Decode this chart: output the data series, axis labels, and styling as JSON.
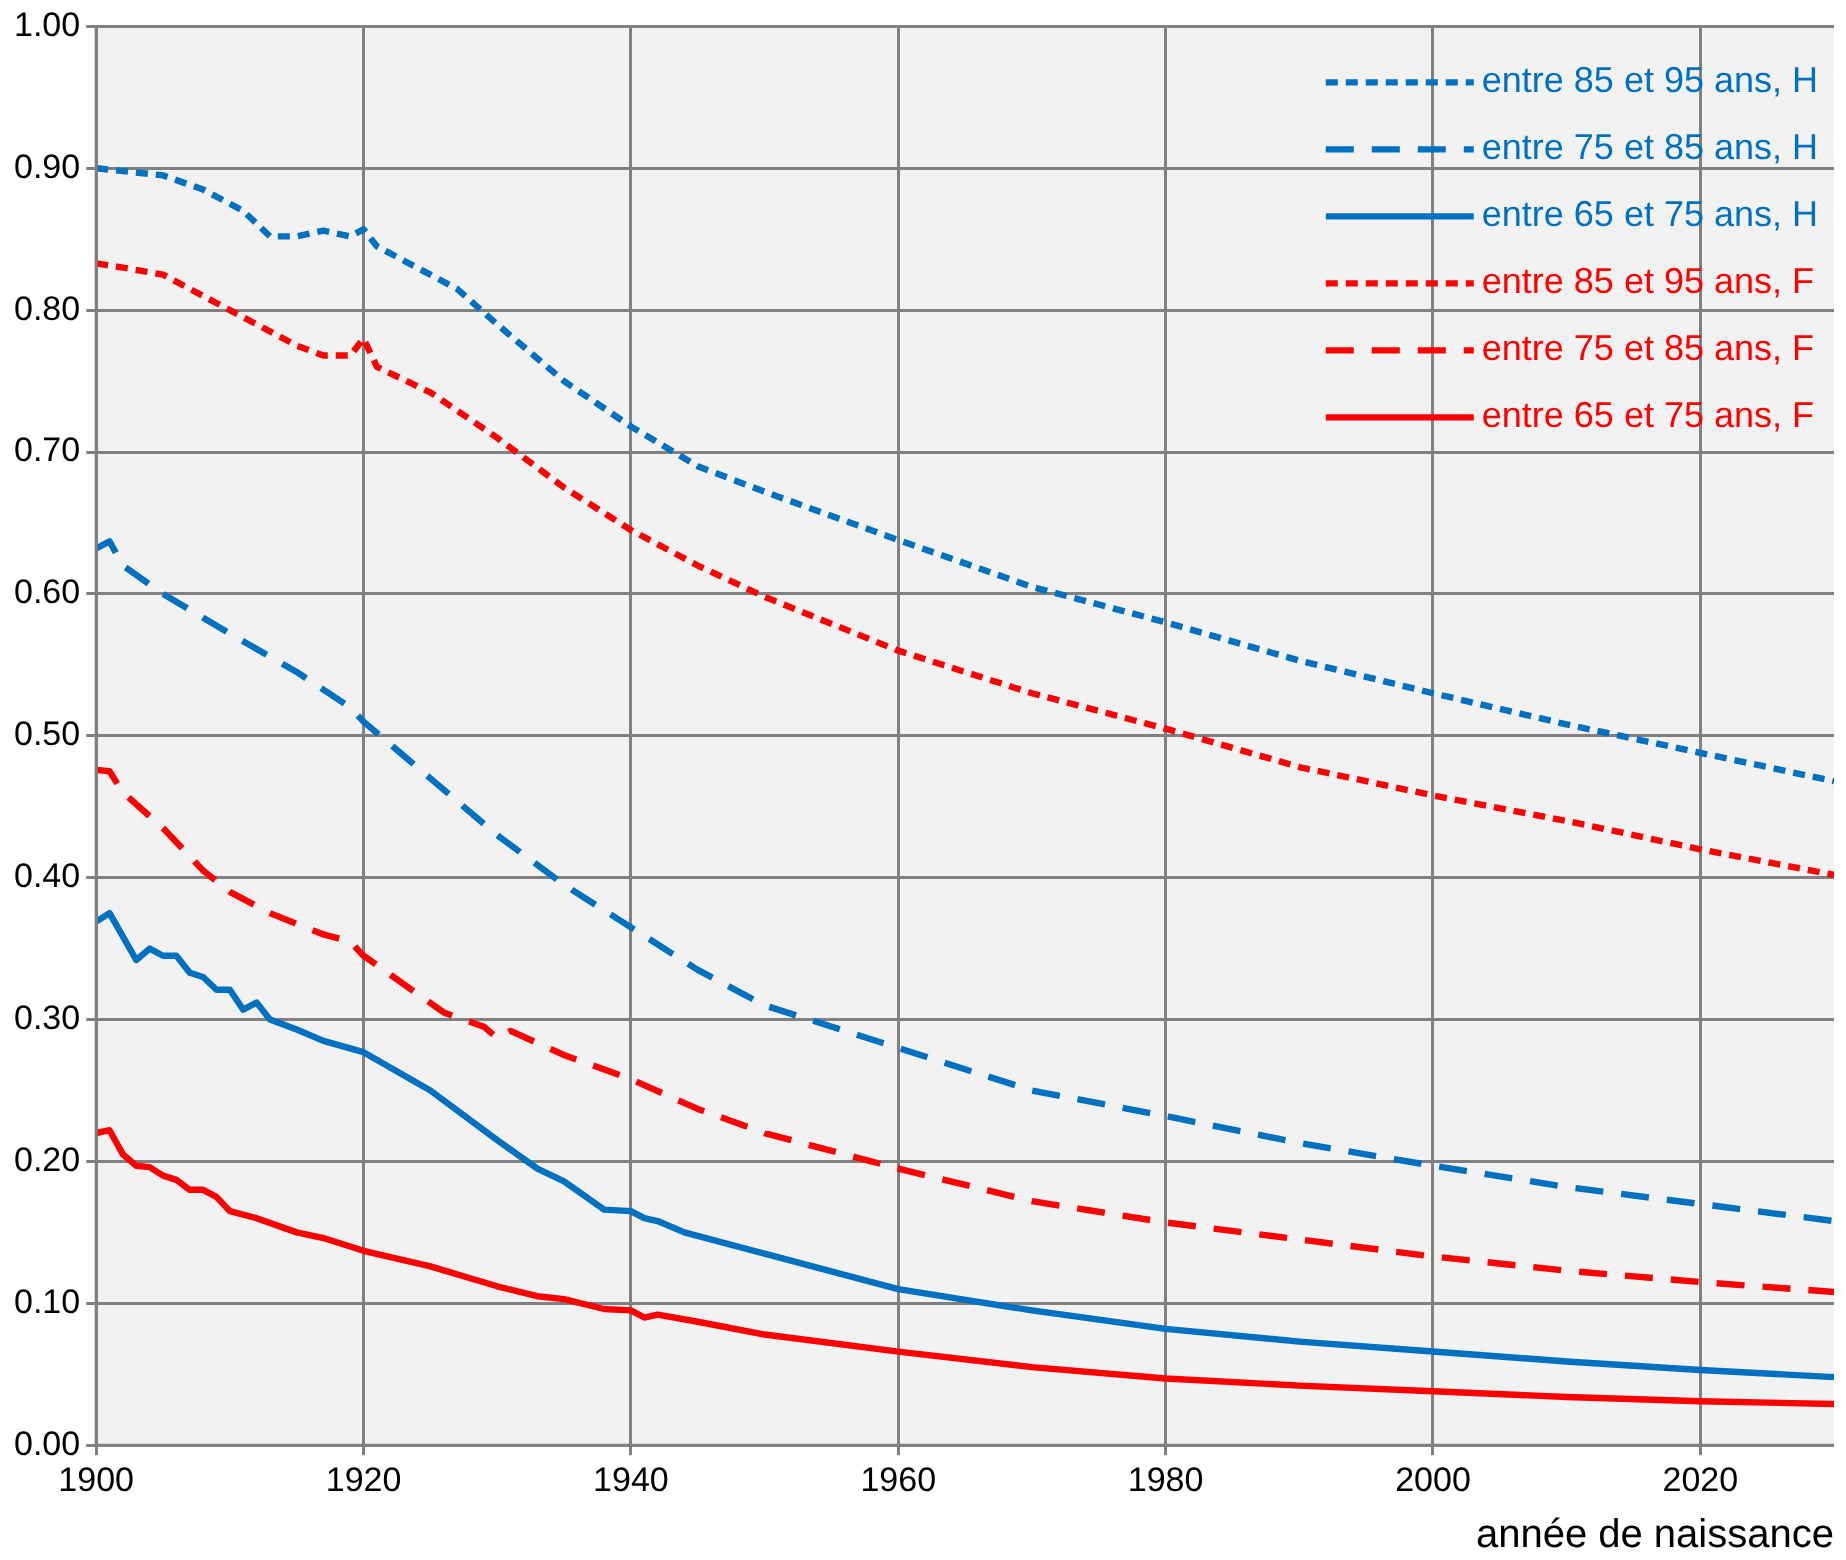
{
  "chart_data": {
    "type": "line",
    "xlabel": "année de naissance",
    "xlim": [
      1900,
      2030
    ],
    "xticks": [
      1900,
      1920,
      1940,
      1960,
      1980,
      2000,
      2020
    ],
    "ylim": [
      0,
      1
    ],
    "yticks": [
      {
        "value": 0,
        "label": "0.00"
      },
      {
        "value": 0.1,
        "label": "0.10"
      },
      {
        "value": 0.2,
        "label": "0.20"
      },
      {
        "value": 0.3,
        "label": "0.30"
      },
      {
        "value": 0.4,
        "label": "0.40"
      },
      {
        "value": 0.5,
        "label": "0.50"
      },
      {
        "value": 0.6,
        "label": "0.60"
      },
      {
        "value": 0.7,
        "label": "0.70"
      },
      {
        "value": 0.8,
        "label": "0.80"
      },
      {
        "value": 0.9,
        "label": "0.90"
      },
      {
        "value": 1,
        "label": "1.00"
      }
    ],
    "grid": true,
    "legend": "top right",
    "marker": "none",
    "series": [
      {
        "name": "entre 85 et 95 ans, H",
        "color": "#0070c0",
        "line_style": "dotted",
        "x": [
          1900,
          1905,
          1908,
          1911,
          1913,
          1915,
          1917,
          1919,
          1920,
          1921,
          1925,
          1927,
          1930,
          1935,
          1940,
          1945,
          1950,
          1960,
          1970,
          1980,
          1990,
          2000,
          2010,
          2020,
          2030
        ],
        "values": [
          0.9,
          0.895,
          0.885,
          0.87,
          0.852,
          0.852,
          0.856,
          0.852,
          0.857,
          0.845,
          0.825,
          0.815,
          0.79,
          0.75,
          0.718,
          0.69,
          0.672,
          0.638,
          0.605,
          0.58,
          0.553,
          0.53,
          0.508,
          0.488,
          0.468
        ]
      },
      {
        "name": "entre 75 et 85 ans, H",
        "color": "#0070c0",
        "line_style": "dashed",
        "x": [
          1900,
          1901,
          1902,
          1905,
          1910,
          1915,
          1919,
          1920,
          1925,
          1930,
          1935,
          1940,
          1945,
          1950,
          1960,
          1970,
          1980,
          1990,
          2000,
          2010,
          2020,
          2030
        ],
        "values": [
          0.632,
          0.637,
          0.62,
          0.6,
          0.572,
          0.545,
          0.52,
          0.51,
          0.47,
          0.43,
          0.395,
          0.365,
          0.335,
          0.31,
          0.28,
          0.25,
          0.232,
          0.213,
          0.197,
          0.182,
          0.17,
          0.158
        ]
      },
      {
        "name": "entre 65 et 75 ans, H",
        "color": "#0070c0",
        "line_style": "solid",
        "x": [
          1900,
          1901,
          1903,
          1904,
          1905,
          1906,
          1907,
          1908,
          1909,
          1910,
          1911,
          1912,
          1913,
          1915,
          1917,
          1920,
          1925,
          1930,
          1933,
          1935,
          1938,
          1940,
          1941,
          1942,
          1944,
          1950,
          1960,
          1970,
          1980,
          1990,
          2000,
          2010,
          2020,
          2030
        ],
        "values": [
          0.369,
          0.375,
          0.342,
          0.35,
          0.345,
          0.345,
          0.333,
          0.33,
          0.321,
          0.321,
          0.307,
          0.312,
          0.3,
          0.293,
          0.285,
          0.277,
          0.25,
          0.215,
          0.195,
          0.186,
          0.166,
          0.165,
          0.16,
          0.158,
          0.15,
          0.135,
          0.11,
          0.095,
          0.082,
          0.073,
          0.066,
          0.059,
          0.053,
          0.048
        ]
      },
      {
        "name": "entre 85 et 95 ans, F",
        "color": "#ff0000",
        "line_style": "dotted",
        "x": [
          1900,
          1902,
          1905,
          1907,
          1910,
          1912,
          1915,
          1917,
          1919,
          1920,
          1921,
          1925,
          1930,
          1935,
          1940,
          1945,
          1950,
          1960,
          1970,
          1980,
          1990,
          2000,
          2010,
          2020,
          2030
        ],
        "values": [
          0.833,
          0.83,
          0.825,
          0.815,
          0.8,
          0.79,
          0.775,
          0.768,
          0.768,
          0.78,
          0.76,
          0.742,
          0.71,
          0.675,
          0.645,
          0.62,
          0.598,
          0.56,
          0.53,
          0.505,
          0.478,
          0.458,
          0.44,
          0.42,
          0.402
        ]
      },
      {
        "name": "entre 75 et 85 ans, F",
        "color": "#ff0000",
        "line_style": "dashed",
        "x": [
          1900,
          1901,
          1902,
          1905,
          1908,
          1910,
          1913,
          1917,
          1919,
          1920,
          1923,
          1926,
          1929,
          1930,
          1931,
          1935,
          1940,
          1945,
          1950,
          1960,
          1970,
          1980,
          1990,
          2000,
          2010,
          2020,
          2030
        ],
        "values": [
          0.476,
          0.475,
          0.46,
          0.435,
          0.405,
          0.39,
          0.375,
          0.36,
          0.355,
          0.345,
          0.325,
          0.305,
          0.295,
          0.287,
          0.292,
          0.275,
          0.258,
          0.237,
          0.22,
          0.195,
          0.172,
          0.157,
          0.145,
          0.133,
          0.123,
          0.115,
          0.108
        ]
      },
      {
        "name": "entre 65 et 75 ans, F",
        "color": "#ff0000",
        "line_style": "solid",
        "x": [
          1900,
          1901,
          1902,
          1903,
          1904,
          1905,
          1906,
          1907,
          1908,
          1909,
          1910,
          1912,
          1915,
          1917,
          1920,
          1925,
          1930,
          1933,
          1935,
          1938,
          1940,
          1941,
          1942,
          1945,
          1950,
          1960,
          1970,
          1980,
          1990,
          2000,
          2010,
          2020,
          2030
        ],
        "values": [
          0.22,
          0.222,
          0.205,
          0.197,
          0.196,
          0.19,
          0.187,
          0.18,
          0.18,
          0.175,
          0.165,
          0.16,
          0.15,
          0.146,
          0.137,
          0.126,
          0.112,
          0.105,
          0.103,
          0.096,
          0.095,
          0.09,
          0.092,
          0.087,
          0.078,
          0.066,
          0.055,
          0.047,
          0.042,
          0.038,
          0.034,
          0.031,
          0.029
        ]
      }
    ]
  }
}
